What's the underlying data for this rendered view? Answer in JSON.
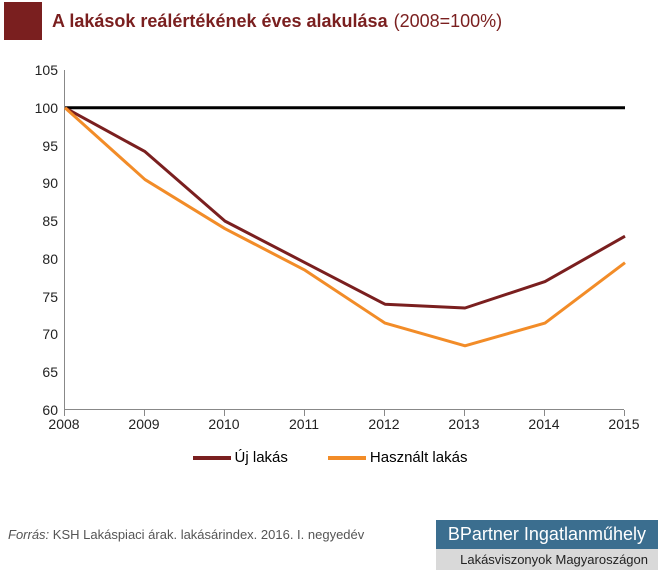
{
  "title": {
    "main": "A lakások reálértékének éves alakulása",
    "sub": "(2008=100%)",
    "color": "#7a1f1f",
    "square_color": "#7a1f1f"
  },
  "chart": {
    "type": "line",
    "x_categories": [
      "2008",
      "2009",
      "2010",
      "2011",
      "2012",
      "2013",
      "2014",
      "2015"
    ],
    "ylim": [
      60,
      105
    ],
    "ytick_step": 5,
    "ref_line": {
      "value": 100,
      "color": "#000000",
      "width": 3
    },
    "axis_color": "#888888",
    "grid": false,
    "background_color": "#ffffff",
    "series": [
      {
        "name": "Új lakás",
        "color": "#7a1f1f",
        "width": 3,
        "values": [
          100,
          94.2,
          85.0,
          79.5,
          74.0,
          73.5,
          77.0,
          83.0
        ]
      },
      {
        "name": "Használt lakás",
        "color": "#f28c28",
        "width": 3,
        "values": [
          100,
          90.5,
          84.0,
          78.5,
          71.5,
          68.5,
          71.5,
          79.5
        ]
      }
    ],
    "label_fontsize": 14,
    "legend_fontsize": 15
  },
  "source": {
    "label": "Forrás:",
    "text": "KSH Lakáspiaci árak. lakásárindex. 2016. I. negyedév"
  },
  "badge": {
    "top": "BPartner Ingatlanműhely",
    "top_bg": "#3b6e8f",
    "bottom": "Lakásviszonyok Magyaroszágon",
    "bottom_bg": "#d9d9d9"
  }
}
